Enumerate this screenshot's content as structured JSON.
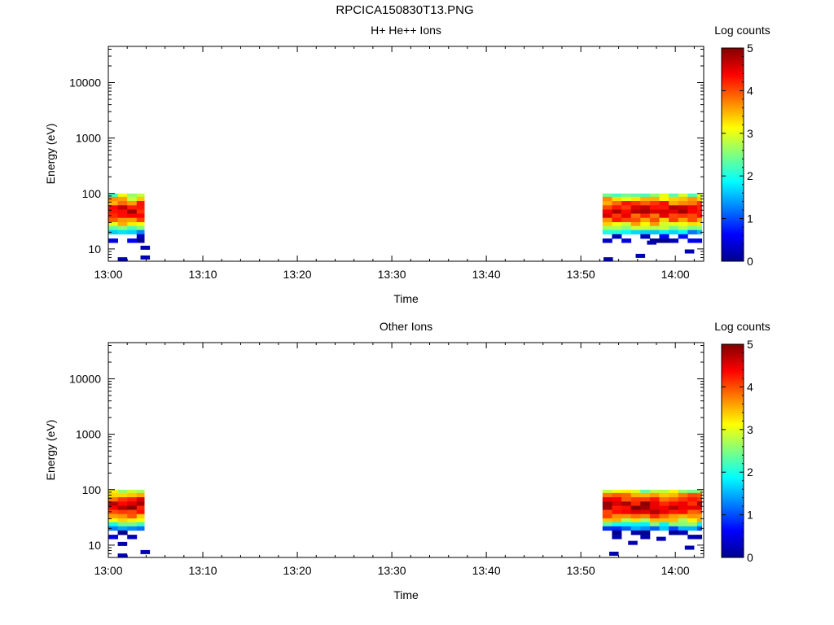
{
  "page_title": "RPCICA150830T13.PNG",
  "chart_data": [
    {
      "type": "heatmap",
      "title": "H+ He++ Ions",
      "xlabel": "Time",
      "ylabel": "Energy (eV)",
      "x_ticks": [
        "13:00",
        "13:10",
        "13:20",
        "13:30",
        "13:40",
        "13:50",
        "14:00"
      ],
      "xlim": [
        "13:00",
        "14:03"
      ],
      "y_scale": "log",
      "y_ticks": [
        10,
        100,
        1000,
        10000
      ],
      "y_tick_labels": [
        "10",
        "100",
        "1000",
        "10000"
      ],
      "ylim": [
        6,
        45000
      ],
      "colorbar": {
        "label": "Log counts",
        "range": [
          0,
          5
        ],
        "ticks": [
          "0",
          "1",
          "2",
          "3",
          "4",
          "5"
        ]
      },
      "time_bins": [
        [
          "13:00",
          "13:03.8"
        ],
        [
          "13:52.3",
          "14:02.8"
        ]
      ],
      "profile": {
        "energy_eV": [
          95,
          80,
          67,
          56,
          47,
          40,
          33,
          28,
          24,
          20,
          17,
          14
        ],
        "log_counts": [
          2.6,
          3.3,
          3.9,
          4.3,
          4.4,
          4.2,
          3.8,
          3.3,
          2.5,
          1.6,
          0.6,
          0.2
        ]
      },
      "sparse_low_energy_counts": [
        {
          "t": "13:01",
          "e": 6.5,
          "v": 0.2
        },
        {
          "t": "13:03.4",
          "e": 7,
          "v": 0.2
        },
        {
          "t": "13:03.4",
          "e": 10.5,
          "v": 0.2
        },
        {
          "t": "13:52.4",
          "e": 6.5,
          "v": 0.2
        },
        {
          "t": "13:55.8",
          "e": 7.5,
          "v": 0.2
        },
        {
          "t": "13:57",
          "e": 13,
          "v": 0.2
        },
        {
          "t": "14:01",
          "e": 9,
          "v": 0.2
        }
      ]
    },
    {
      "type": "heatmap",
      "title": "Other Ions",
      "xlabel": "Time",
      "ylabel": "Energy (eV)",
      "x_ticks": [
        "13:00",
        "13:10",
        "13:20",
        "13:30",
        "13:40",
        "13:50",
        "14:00"
      ],
      "xlim": [
        "13:00",
        "14:03"
      ],
      "y_scale": "log",
      "y_ticks": [
        10,
        100,
        1000,
        10000
      ],
      "y_tick_labels": [
        "10",
        "100",
        "1000",
        "10000"
      ],
      "ylim": [
        6,
        45000
      ],
      "colorbar": {
        "label": "Log counts",
        "range": [
          0,
          5
        ],
        "ticks": [
          "0",
          "1",
          "2",
          "3",
          "4",
          "5"
        ]
      },
      "time_bins": [
        [
          "13:00",
          "13:03.8"
        ],
        [
          "13:52.3",
          "14:02.8"
        ]
      ],
      "profile": {
        "energy_eV": [
          95,
          80,
          67,
          56,
          47,
          40,
          33,
          28,
          24,
          20,
          17,
          14
        ],
        "log_counts": [
          2.8,
          3.6,
          4.2,
          4.5,
          4.6,
          4.3,
          3.8,
          3.1,
          2.2,
          1.2,
          0.4,
          0.2
        ]
      },
      "sparse_low_energy_counts": [
        {
          "t": "13:01",
          "e": 6.5,
          "v": 0.2
        },
        {
          "t": "13:03.4",
          "e": 7.5,
          "v": 0.2
        },
        {
          "t": "13:01",
          "e": 10.5,
          "v": 0.2
        },
        {
          "t": "13:53",
          "e": 7,
          "v": 0.2
        },
        {
          "t": "13:55",
          "e": 11,
          "v": 0.2
        },
        {
          "t": "13:58",
          "e": 13,
          "v": 0.2
        },
        {
          "t": "14:01",
          "e": 9,
          "v": 0.2
        }
      ]
    }
  ]
}
